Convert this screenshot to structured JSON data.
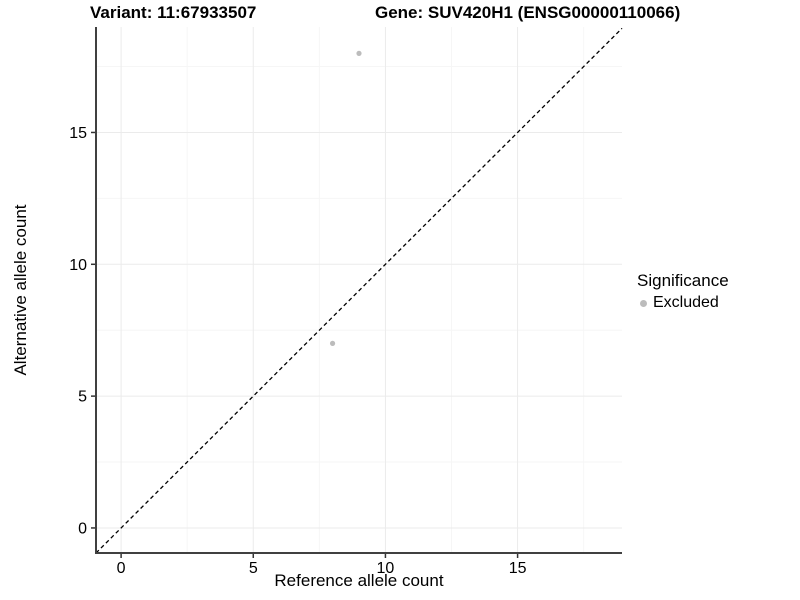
{
  "page": {
    "background": "#ffffff"
  },
  "chart_data": {
    "type": "scatter",
    "title_left": "Variant: 11:67933507",
    "title_right": "Gene: SUV420H1 (ENSG00000110066)",
    "xlabel": "Reference allele count",
    "ylabel": "Alternative allele count",
    "xlim": [
      -0.95,
      18.95
    ],
    "ylim": [
      -0.95,
      19.0
    ],
    "xticks": [
      0,
      5,
      10,
      15
    ],
    "yticks": [
      0,
      5,
      10,
      15
    ],
    "minor_xticks": [
      2.5,
      7.5,
      12.5,
      17.5
    ],
    "minor_yticks": [
      2.5,
      7.5,
      12.5,
      17.5
    ],
    "grid": "major-and-minor",
    "reference_line": {
      "kind": "identity",
      "style": "dashed",
      "color": "#000000"
    },
    "series": [
      {
        "name": "Excluded",
        "color": "#bcbcbc",
        "points": [
          [
            9,
            18
          ],
          [
            8,
            7
          ]
        ]
      }
    ],
    "legend": {
      "title": "Significance",
      "position": "right",
      "entries": [
        {
          "label": "Excluded",
          "color": "#bcbcbc"
        }
      ]
    },
    "colors": {
      "axis": "#404040",
      "tick": "#333333",
      "grid_major": "#ebebeb",
      "grid_minor": "#f6f6f6",
      "text": "#000000"
    }
  }
}
